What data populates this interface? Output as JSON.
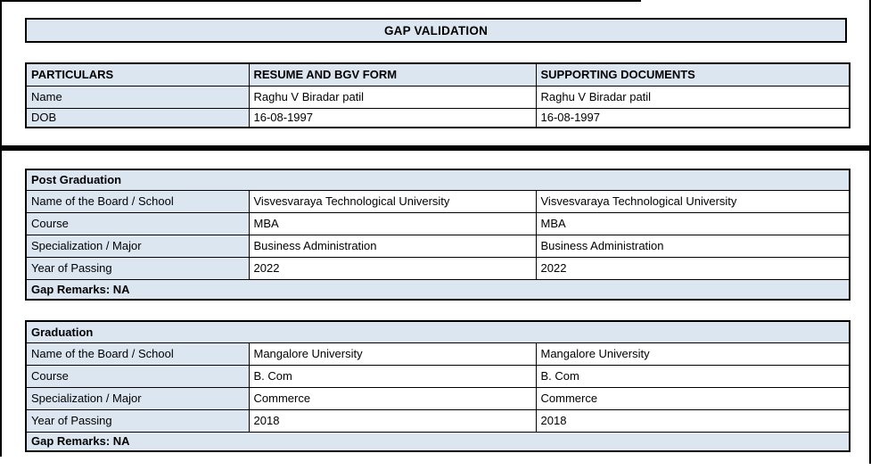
{
  "title": "GAP VALIDATION",
  "colors": {
    "header_bg": "#DCE6F1",
    "border": "#000000",
    "page_bg": "#FFFFFF"
  },
  "particulars_table": {
    "headers": [
      "PARTICULARS",
      "RESUME AND BGV FORM",
      "SUPPORTING DOCUMENTS"
    ],
    "rows": [
      {
        "label": "Name",
        "resume": "Raghu V Biradar patil",
        "supporting": "Raghu V Biradar patil"
      },
      {
        "label": "DOB",
        "resume": "16-08-1997",
        "supporting": "16-08-1997"
      }
    ]
  },
  "education_sections": [
    {
      "section_title": "Post Graduation",
      "rows": [
        {
          "label": "Name of the Board / School",
          "resume": "Visvesvaraya Technological University",
          "supporting": "Visvesvaraya Technological University"
        },
        {
          "label": "Course",
          "resume": "MBA",
          "supporting": "MBA"
        },
        {
          "label": "Specialization / Major",
          "resume": "Business Administration",
          "supporting": "Business Administration"
        },
        {
          "label": "Year of Passing",
          "resume": "2022",
          "supporting": "2022"
        }
      ],
      "gap_remarks": "Gap Remarks: NA"
    },
    {
      "section_title": "Graduation",
      "rows": [
        {
          "label": "Name of the Board / School",
          "resume": "Mangalore University",
          "supporting": "Mangalore University"
        },
        {
          "label": "Course",
          "resume": "B. Com",
          "supporting": "B. Com"
        },
        {
          "label": "Specialization / Major",
          "resume": "Commerce",
          "supporting": "Commerce"
        },
        {
          "label": "Year of Passing",
          "resume": "2018",
          "supporting": "2018"
        }
      ],
      "gap_remarks": "Gap Remarks: NA"
    }
  ]
}
